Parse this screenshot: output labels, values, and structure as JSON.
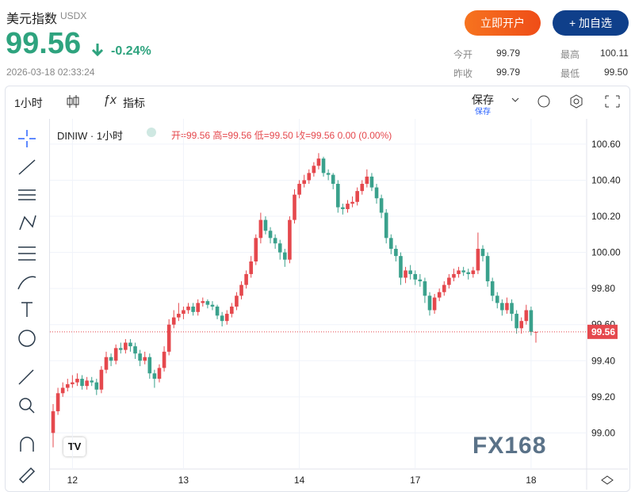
{
  "header": {
    "title": "美元指数",
    "code": "USDX",
    "price": "99.56",
    "change": "-0.24%",
    "time": "2026-03-18 02:33:24",
    "open_account": "立即开户",
    "add_watch": "+ 加自选",
    "stats": [
      {
        "label": "今开",
        "value": "99.79"
      },
      {
        "label": "最高",
        "value": "100.11"
      },
      {
        "label": "昨收",
        "value": "99.79"
      },
      {
        "label": "最低",
        "value": "99.50"
      }
    ]
  },
  "toolbar": {
    "interval": "1小时",
    "indicators": "指标",
    "save": "保存",
    "save_sub": "保存"
  },
  "legend": {
    "symbol": "DINIW · 1小时",
    "ohlc": [
      "开=99.56",
      "高=99.56",
      "低=99.50",
      "收=99.56",
      "0.00 (0.00%)"
    ]
  },
  "watermark": "FX168",
  "chart_data": {
    "type": "candlestick",
    "up_color": "#e5484d",
    "down_color": "#3aa18c",
    "grid": true,
    "categories": [
      null,
      null,
      null,
      null,
      "12",
      null,
      null,
      null,
      null,
      null,
      null,
      null,
      null,
      null,
      null,
      null,
      null,
      null,
      null,
      null,
      null,
      null,
      null,
      null,
      null,
      null,
      null,
      "13",
      null,
      null,
      null,
      null,
      null,
      null,
      null,
      null,
      null,
      null,
      null,
      null,
      null,
      null,
      null,
      null,
      null,
      null,
      null,
      null,
      null,
      null,
      null,
      "14",
      null,
      null,
      null,
      null,
      null,
      null,
      null,
      null,
      null,
      null,
      null,
      null,
      null,
      null,
      null,
      null,
      null,
      null,
      null,
      null,
      null,
      null,
      null,
      "17",
      null,
      null,
      null,
      null,
      null,
      null,
      null,
      null,
      null,
      null,
      null,
      null,
      null,
      null,
      null,
      null,
      null,
      null,
      null,
      null,
      null,
      null,
      null,
      "18",
      null
    ],
    "open": [
      99.0,
      99.12,
      99.22,
      99.25,
      99.27,
      99.28,
      99.3,
      99.26,
      99.29,
      99.28,
      99.24,
      99.35,
      99.42,
      99.4,
      99.47,
      99.46,
      99.5,
      99.48,
      99.44,
      99.4,
      99.42,
      99.33,
      99.3,
      99.36,
      99.45,
      99.6,
      99.64,
      99.66,
      99.68,
      99.7,
      99.67,
      99.72,
      99.73,
      99.71,
      99.7,
      99.65,
      99.62,
      99.66,
      99.7,
      99.76,
      99.82,
      99.88,
      99.95,
      100.08,
      100.18,
      100.12,
      100.08,
      100.05,
      100.0,
      99.96,
      100.18,
      100.32,
      100.38,
      100.4,
      100.44,
      100.48,
      100.52,
      100.44,
      100.43,
      100.38,
      100.25,
      100.24,
      100.27,
      100.28,
      100.34,
      100.38,
      100.42,
      100.36,
      100.3,
      100.22,
      100.08,
      100.02,
      99.98,
      99.86,
      99.9,
      99.88,
      99.85,
      99.84,
      99.76,
      99.68,
      99.75,
      99.78,
      99.82,
      99.86,
      99.88,
      99.9,
      99.89,
      99.88,
      99.9,
      100.02,
      99.98,
      99.84,
      99.76,
      99.72,
      99.68,
      99.72,
      99.66,
      99.58,
      99.62,
      99.68,
      99.56
    ],
    "high": [
      99.16,
      99.25,
      99.28,
      99.3,
      99.32,
      99.33,
      99.32,
      99.31,
      99.31,
      99.3,
      99.37,
      99.45,
      99.44,
      99.49,
      99.5,
      99.52,
      99.52,
      99.5,
      99.46,
      99.45,
      99.44,
      99.35,
      99.38,
      99.48,
      99.63,
      99.68,
      99.72,
      99.7,
      99.72,
      99.72,
      99.74,
      99.75,
      99.74,
      99.73,
      99.71,
      99.67,
      99.68,
      99.72,
      99.78,
      99.84,
      99.9,
      99.98,
      100.1,
      100.22,
      100.2,
      100.14,
      100.1,
      100.07,
      100.02,
      100.2,
      100.35,
      100.4,
      100.43,
      100.46,
      100.5,
      100.55,
      100.53,
      100.46,
      100.44,
      100.4,
      100.27,
      100.29,
      100.31,
      100.36,
      100.4,
      100.46,
      100.44,
      100.38,
      100.32,
      100.24,
      100.1,
      100.04,
      100.0,
      99.92,
      99.93,
      99.9,
      99.88,
      99.86,
      99.78,
      99.77,
      99.8,
      99.84,
      99.88,
      99.91,
      99.92,
      99.92,
      99.91,
      99.92,
      100.11,
      100.04,
      100.0,
      99.86,
      99.78,
      99.74,
      99.75,
      99.74,
      99.68,
      99.64,
      99.71,
      99.7,
      99.56
    ],
    "low": [
      98.92,
      99.1,
      99.2,
      99.23,
      99.25,
      99.26,
      99.24,
      99.24,
      99.26,
      99.21,
      99.22,
      99.33,
      99.37,
      99.38,
      99.44,
      99.44,
      99.45,
      99.41,
      99.37,
      99.38,
      99.3,
      99.25,
      99.28,
      99.34,
      99.43,
      99.58,
      99.62,
      99.63,
      99.66,
      99.65,
      99.65,
      99.7,
      99.69,
      99.68,
      99.63,
      99.59,
      99.6,
      99.64,
      99.68,
      99.74,
      99.8,
      99.86,
      99.93,
      100.05,
      100.1,
      100.05,
      100.02,
      99.96,
      99.92,
      99.94,
      100.16,
      100.3,
      100.36,
      100.38,
      100.42,
      100.46,
      100.42,
      100.4,
      100.35,
      100.22,
      100.21,
      100.22,
      100.25,
      100.26,
      100.32,
      100.36,
      100.34,
      100.27,
      100.19,
      100.05,
      99.99,
      99.95,
      99.82,
      99.83,
      99.85,
      99.82,
      99.81,
      99.72,
      99.65,
      99.66,
      99.73,
      99.76,
      99.8,
      99.84,
      99.86,
      99.87,
      99.85,
      99.86,
      99.88,
      99.95,
      99.81,
      99.73,
      99.69,
      99.65,
      99.66,
      99.62,
      99.55,
      99.55,
      99.6,
      99.54,
      99.5
    ],
    "close": [
      99.12,
      99.22,
      99.25,
      99.27,
      99.28,
      99.3,
      99.26,
      99.29,
      99.28,
      99.24,
      99.35,
      99.42,
      99.4,
      99.47,
      99.46,
      99.5,
      99.48,
      99.44,
      99.4,
      99.42,
      99.33,
      99.3,
      99.36,
      99.45,
      99.6,
      99.64,
      99.66,
      99.68,
      99.7,
      99.67,
      99.72,
      99.73,
      99.71,
      99.7,
      99.65,
      99.62,
      99.66,
      99.7,
      99.76,
      99.82,
      99.88,
      99.95,
      100.08,
      100.18,
      100.12,
      100.08,
      100.05,
      100.0,
      99.96,
      100.18,
      100.32,
      100.38,
      100.4,
      100.44,
      100.48,
      100.52,
      100.44,
      100.43,
      100.38,
      100.25,
      100.24,
      100.27,
      100.28,
      100.34,
      100.38,
      100.42,
      100.36,
      100.3,
      100.22,
      100.08,
      100.02,
      99.98,
      99.86,
      99.9,
      99.88,
      99.85,
      99.84,
      99.76,
      99.68,
      99.75,
      99.78,
      99.82,
      99.86,
      99.88,
      99.9,
      99.89,
      99.88,
      99.9,
      100.02,
      99.98,
      99.84,
      99.76,
      99.72,
      99.68,
      99.72,
      99.66,
      99.58,
      99.62,
      99.68,
      99.56,
      99.56
    ],
    "ylim": [
      98.8,
      100.74
    ],
    "yticks": [
      {
        "value": 99,
        "label": "99.00"
      },
      {
        "value": 99.2,
        "label": "99.20"
      },
      {
        "value": 99.4,
        "label": "99.40"
      },
      {
        "value": 99.6,
        "label": "99.60"
      },
      {
        "value": 99.8,
        "label": "99.80"
      },
      {
        "value": 100,
        "label": "100.00"
      },
      {
        "value": 100.2,
        "label": "100.20"
      },
      {
        "value": 100.4,
        "label": "100.40"
      },
      {
        "value": 100.6,
        "label": "100.60"
      }
    ],
    "price_line": 99.56
  }
}
